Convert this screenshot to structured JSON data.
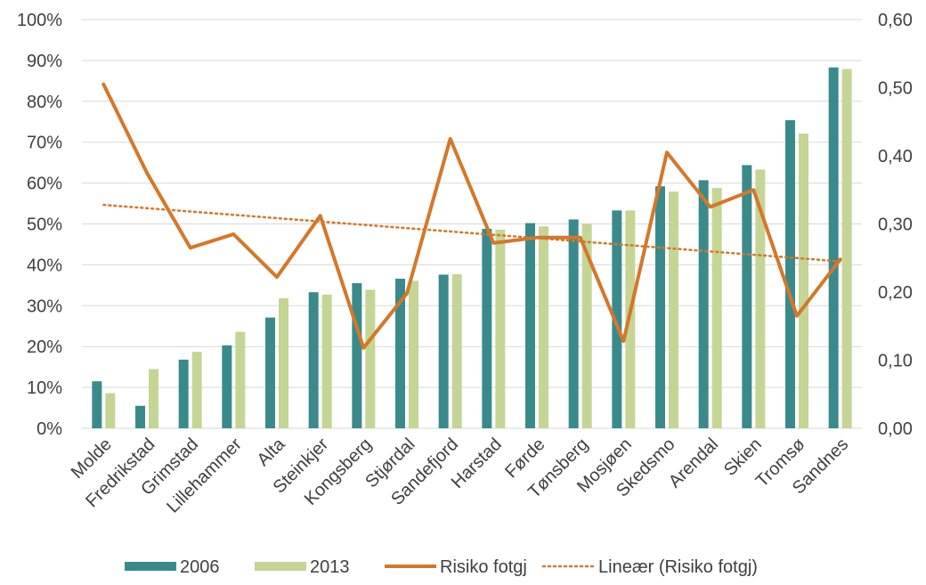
{
  "chart_data": {
    "type": "bar",
    "categories": [
      "Molde",
      "Fredrikstad",
      "Grimstad",
      "Lillehammer",
      "Alta",
      "Steinkjer",
      "Kongsberg",
      "Stjørdal",
      "Sandefjord",
      "Harstad",
      "Førde",
      "Tønsberg",
      "Mosjøen",
      "Skedsmo",
      "Arendal",
      "Skien",
      "Tromsø",
      "Sandnes"
    ],
    "series": [
      {
        "name": "2006",
        "kind": "bar",
        "axis": "left",
        "color": "#3a8a8c",
        "values": [
          11.5,
          5.5,
          16.8,
          20.3,
          27.1,
          33.3,
          35.5,
          36.6,
          37.6,
          48.8,
          50.2,
          51.1,
          53.3,
          59.2,
          60.7,
          64.4,
          75.4,
          88.3
        ]
      },
      {
        "name": "2013",
        "kind": "bar",
        "axis": "left",
        "color": "#c5d595",
        "values": [
          8.6,
          14.5,
          18.7,
          23.6,
          31.8,
          32.7,
          33.9,
          36.1,
          37.7,
          48.6,
          49.4,
          50.1,
          53.3,
          57.9,
          58.8,
          63.3,
          72.1,
          87.9
        ]
      },
      {
        "name": "Risiko fotgj",
        "kind": "line",
        "axis": "right",
        "color": "#d4772a",
        "values": [
          0.505,
          0.375,
          0.265,
          0.285,
          0.222,
          0.312,
          0.118,
          0.198,
          0.425,
          0.272,
          0.28,
          0.28,
          0.128,
          0.405,
          0.325,
          0.35,
          0.165,
          0.248
        ]
      },
      {
        "name": "Lineær (Risiko fotgj)",
        "kind": "trendline",
        "axis": "right",
        "color": "#d4772a",
        "start": 0.328,
        "end": 0.245
      }
    ],
    "left_axis": {
      "min": 0,
      "max": 100,
      "step": 10,
      "ticks": [
        "0%",
        "10%",
        "20%",
        "30%",
        "40%",
        "50%",
        "60%",
        "70%",
        "80%",
        "90%",
        "100%"
      ]
    },
    "right_axis": {
      "min": 0,
      "max": 0.6,
      "step": 0.1,
      "ticks": [
        "0,00",
        "0,10",
        "0,20",
        "0,30",
        "0,40",
        "0,50",
        "0,60"
      ]
    },
    "grid": true,
    "legend_position": "bottom",
    "title": "",
    "xlabel": "",
    "ylabel": ""
  },
  "legend": {
    "items": [
      {
        "label": "2006",
        "style": "bar",
        "color": "#3a8a8c"
      },
      {
        "label": "2013",
        "style": "bar",
        "color": "#c5d595"
      },
      {
        "label": "Risiko fotgj",
        "style": "line",
        "color": "#d4772a"
      },
      {
        "label": "Lineær (Risiko fotgj)",
        "style": "dotted",
        "color": "#d4772a"
      }
    ]
  },
  "colors": {
    "grid": "#d9d9d9",
    "text": "#404040"
  }
}
